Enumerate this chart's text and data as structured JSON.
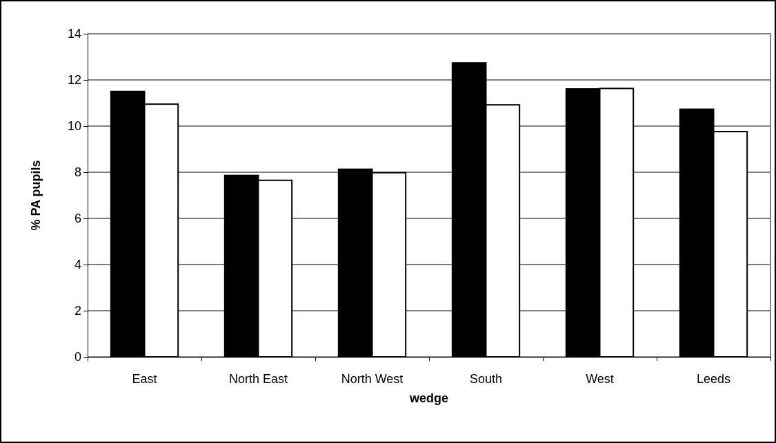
{
  "chart_data": {
    "type": "bar",
    "xlabel": "wedge",
    "ylabel": "% PA pupils",
    "categories": [
      "East",
      "North East",
      "North West",
      "South",
      "West",
      "Leeds"
    ],
    "series": [
      {
        "color": "#000000",
        "values": [
          11.5,
          7.86,
          8.13,
          12.74,
          11.61,
          10.73
        ]
      },
      {
        "color": "#ffffff",
        "values": [
          10.95,
          7.65,
          7.98,
          10.92,
          11.63,
          9.76
        ]
      }
    ],
    "ylim": [
      0,
      14
    ],
    "yticks": [
      0,
      2,
      4,
      6,
      8,
      10,
      12,
      14
    ],
    "grid": "y"
  }
}
